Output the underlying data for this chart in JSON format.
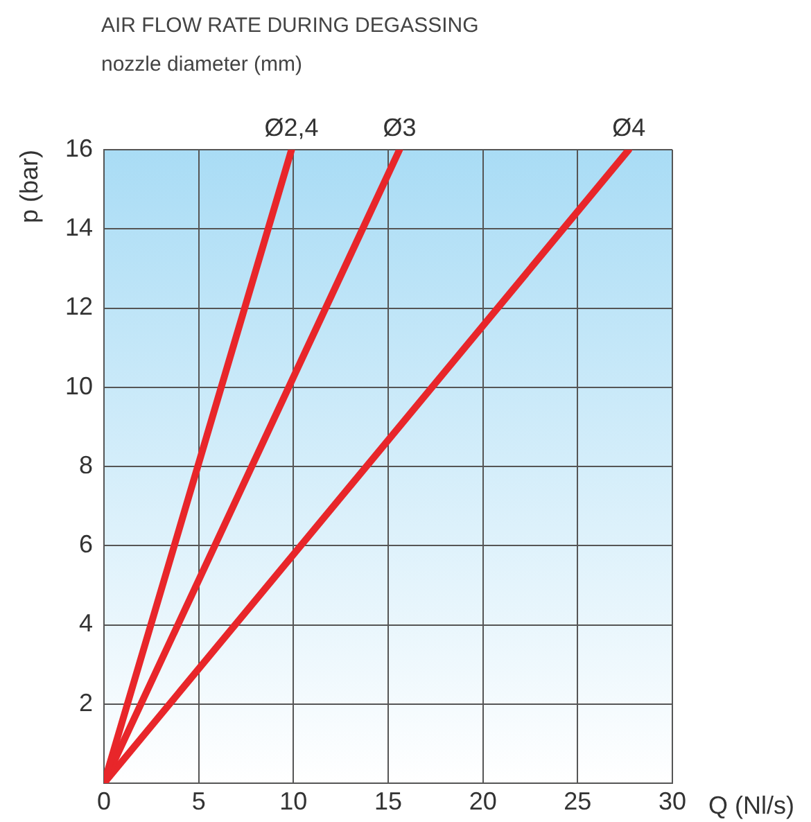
{
  "chart_data": {
    "type": "line",
    "title": "AIR FLOW RATE DURING DEGASSING",
    "subtitle": "nozzle diameter (mm)",
    "xlabel": "Q (Nl/s)",
    "ylabel": "p (bar)",
    "series": [
      {
        "name": "Ø2,4",
        "color": "#e8262a",
        "x": [
          0,
          9.9
        ],
        "values": [
          0,
          16
        ]
      },
      {
        "name": "Ø3",
        "color": "#e8262a",
        "x": [
          0,
          15.6
        ],
        "values": [
          0,
          16
        ]
      },
      {
        "name": "Ø4",
        "color": "#e8262a",
        "x": [
          0,
          27.7
        ],
        "values": [
          0,
          16
        ]
      }
    ],
    "xlim": [
      0,
      30
    ],
    "xticks": [
      0,
      5,
      10,
      15,
      20,
      25,
      30
    ],
    "ylim": [
      0,
      16
    ],
    "yticks": [
      2,
      4,
      6,
      8,
      10,
      12,
      14,
      16
    ],
    "grid": true,
    "legend": false,
    "marker": "none",
    "line_style": "solid"
  }
}
